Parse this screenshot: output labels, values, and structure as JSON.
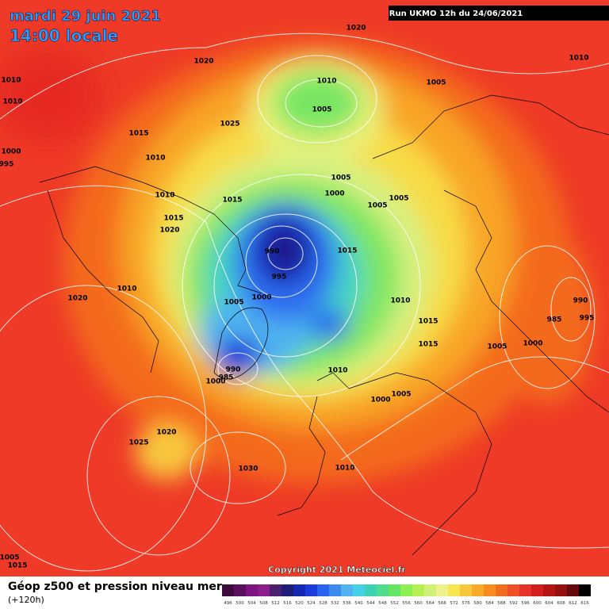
{
  "header": {
    "date": "mardi 29 juin 2021",
    "time": "14:00 locale",
    "run": "Run UKMO 12h du 24/06/2021"
  },
  "copyright": "Copyright 2021 Meteociel.fr",
  "footer": {
    "title": "Géop z500 et pression niveau mer",
    "subtitle": "(+120h)"
  },
  "colorbar": {
    "labels": [
      "496",
      "500",
      "504",
      "508",
      "512",
      "516",
      "520",
      "524",
      "528",
      "532",
      "536",
      "540",
      "544",
      "548",
      "552",
      "556",
      "560",
      "564",
      "568",
      "572",
      "576",
      "580",
      "584",
      "588",
      "592",
      "596",
      "600",
      "604",
      "608",
      "612",
      "616"
    ],
    "colors": [
      "#3c0a3c",
      "#5a0f5f",
      "#7d147f",
      "#8c1e8c",
      "#4b2070",
      "#1e1e78",
      "#1428b4",
      "#1e3cdc",
      "#2864f0",
      "#3c8cf0",
      "#50b4f0",
      "#46d2e6",
      "#3cd2b4",
      "#50dc8c",
      "#64e664",
      "#8cf050",
      "#b4f050",
      "#d2f078",
      "#f0f08c",
      "#f8e650",
      "#f8c83c",
      "#f8aa28",
      "#f88c1e",
      "#f06e1e",
      "#f05028",
      "#e63228",
      "#d21e1e",
      "#b41414",
      "#960f0f",
      "#640a0a",
      "#000000"
    ]
  },
  "isobar_labels": [
    "1020",
    "1010",
    "1020",
    "1010",
    "1005",
    "1010",
    "1010",
    "1005",
    "1025",
    "1015",
    "1010",
    "1000",
    "995",
    "1005",
    "1000",
    "1005",
    "1005",
    "1010",
    "1015",
    "1015",
    "1020",
    "990",
    "1015",
    "995",
    "1010",
    "1020",
    "1005",
    "1000",
    "1010",
    "990",
    "995",
    "985",
    "1015",
    "1015",
    "1005",
    "1000",
    "990",
    "985",
    "1000",
    "1010",
    "1005",
    "1000",
    "1025",
    "1020",
    "1030",
    "1010",
    "1005",
    "1015"
  ]
}
